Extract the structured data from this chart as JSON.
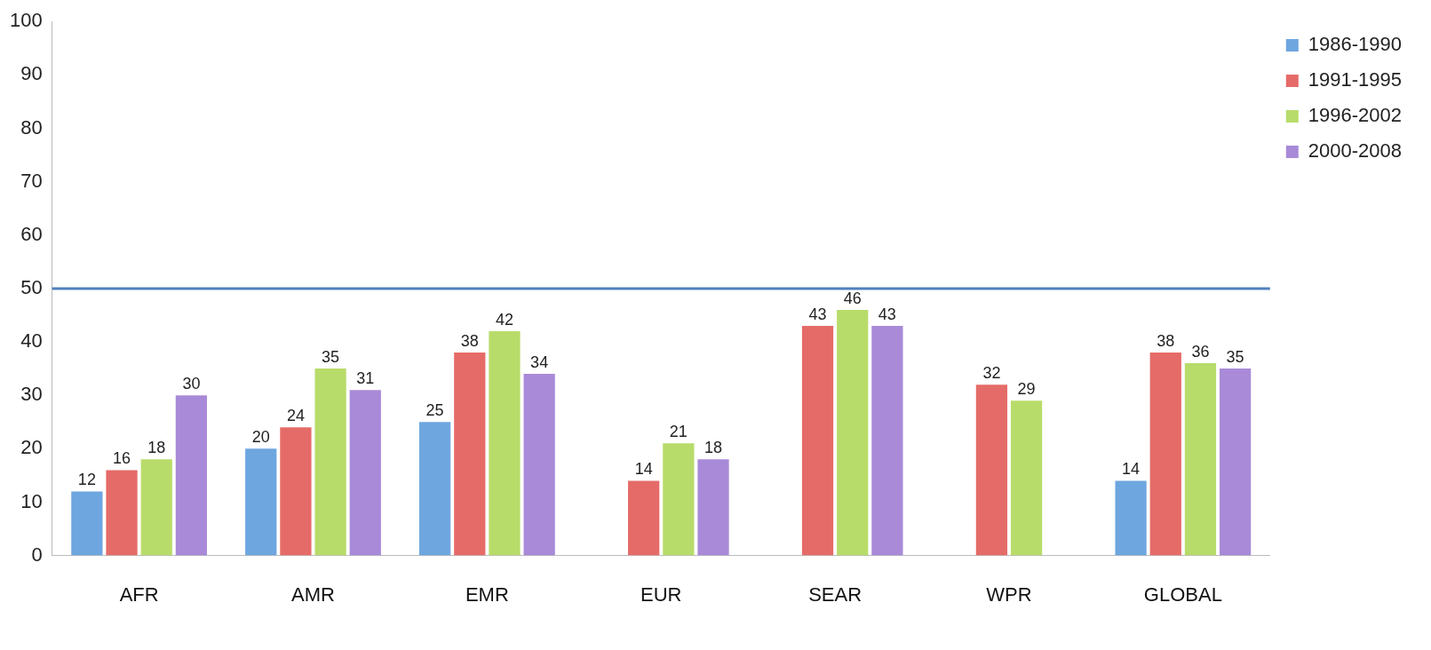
{
  "chart_data": {
    "type": "bar",
    "categories": [
      "AFR",
      "AMR",
      "EMR",
      "EUR",
      "SEAR",
      "WPR",
      "GLOBAL"
    ],
    "series": [
      {
        "name": "1986-1990",
        "color": "#6ea6e0",
        "values": [
          12,
          20,
          25,
          null,
          null,
          null,
          14
        ]
      },
      {
        "name": "1991-1995",
        "color": "#e56b68",
        "values": [
          16,
          24,
          38,
          14,
          43,
          32,
          38
        ]
      },
      {
        "name": "1996-2002",
        "color": "#b8dc6a",
        "values": [
          18,
          35,
          42,
          21,
          46,
          29,
          36
        ]
      },
      {
        "name": "2000-2008",
        "color": "#a98ad8",
        "values": [
          30,
          31,
          34,
          18,
          43,
          null,
          35
        ]
      }
    ],
    "ylim": [
      0,
      100
    ],
    "yticks": [
      0,
      10,
      20,
      30,
      40,
      50,
      60,
      70,
      80,
      90,
      100
    ],
    "ref_lines": [
      {
        "axis": "y",
        "value": 50,
        "color": "#4f81bd"
      }
    ],
    "data_labels": true,
    "grid": false,
    "legend": "top right"
  }
}
